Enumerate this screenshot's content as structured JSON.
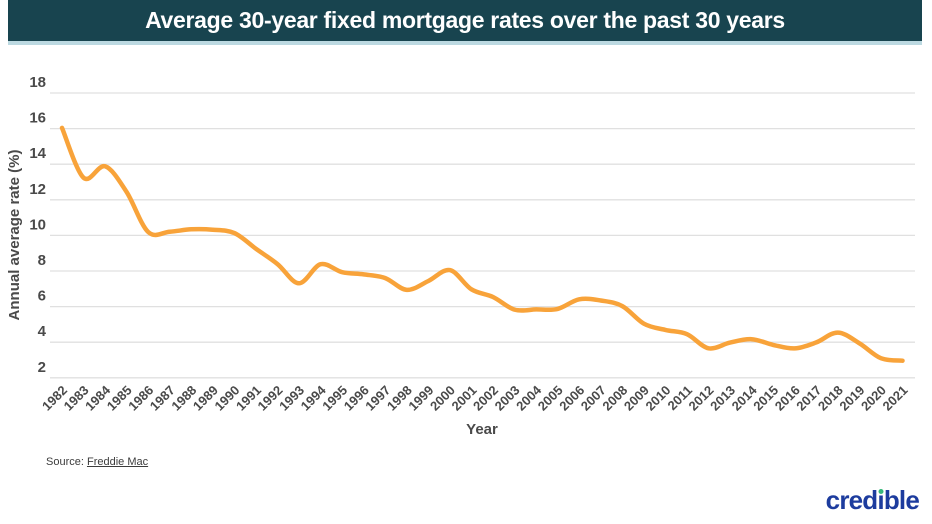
{
  "title": "Average 30-year fixed mortgage rates over the past 30 years",
  "source": {
    "prefix": "Source: ",
    "link_text": "Freddie Mac"
  },
  "logo": {
    "text": "credible"
  },
  "chart_data": {
    "type": "line",
    "title": "Average 30-year fixed mortgage rates over the past 30 years",
    "xlabel": "Year",
    "ylabel": "Annual average rate (%)",
    "years": [
      1982,
      1983,
      1984,
      1985,
      1986,
      1987,
      1988,
      1989,
      1990,
      1991,
      1992,
      1993,
      1994,
      1995,
      1996,
      1997,
      1998,
      1999,
      2000,
      2001,
      2002,
      2003,
      2004,
      2005,
      2006,
      2007,
      2008,
      2009,
      2010,
      2011,
      2012,
      2013,
      2014,
      2015,
      2016,
      2017,
      2018,
      2019,
      2020,
      2021
    ],
    "values": [
      16.04,
      13.24,
      13.88,
      12.43,
      10.19,
      10.21,
      10.34,
      10.32,
      10.13,
      9.25,
      8.39,
      7.31,
      8.38,
      7.93,
      7.81,
      7.6,
      6.94,
      7.44,
      8.05,
      6.97,
      6.54,
      5.83,
      5.84,
      5.87,
      6.41,
      6.34,
      6.03,
      5.04,
      4.69,
      4.45,
      3.66,
      3.98,
      4.17,
      3.85,
      3.65,
      3.99,
      4.54,
      3.94,
      3.1,
      2.96
    ],
    "yticks": [
      18,
      16,
      14,
      12,
      10,
      8,
      6,
      4,
      2
    ],
    "ylim": [
      2,
      18
    ],
    "grid": true,
    "legend": false,
    "line_color": "#F8A33A"
  },
  "colors": {
    "title_bar_bg": "#18444F",
    "title_bar_underline": "#bcd9e1",
    "grid": "#e0e0e0",
    "axis_text": "#4a4a4a",
    "line": "#F8A33A",
    "logo_blue": "#1d3c9e",
    "logo_dot_green": "#35b87a",
    "source_text": "#3c3c3c"
  }
}
